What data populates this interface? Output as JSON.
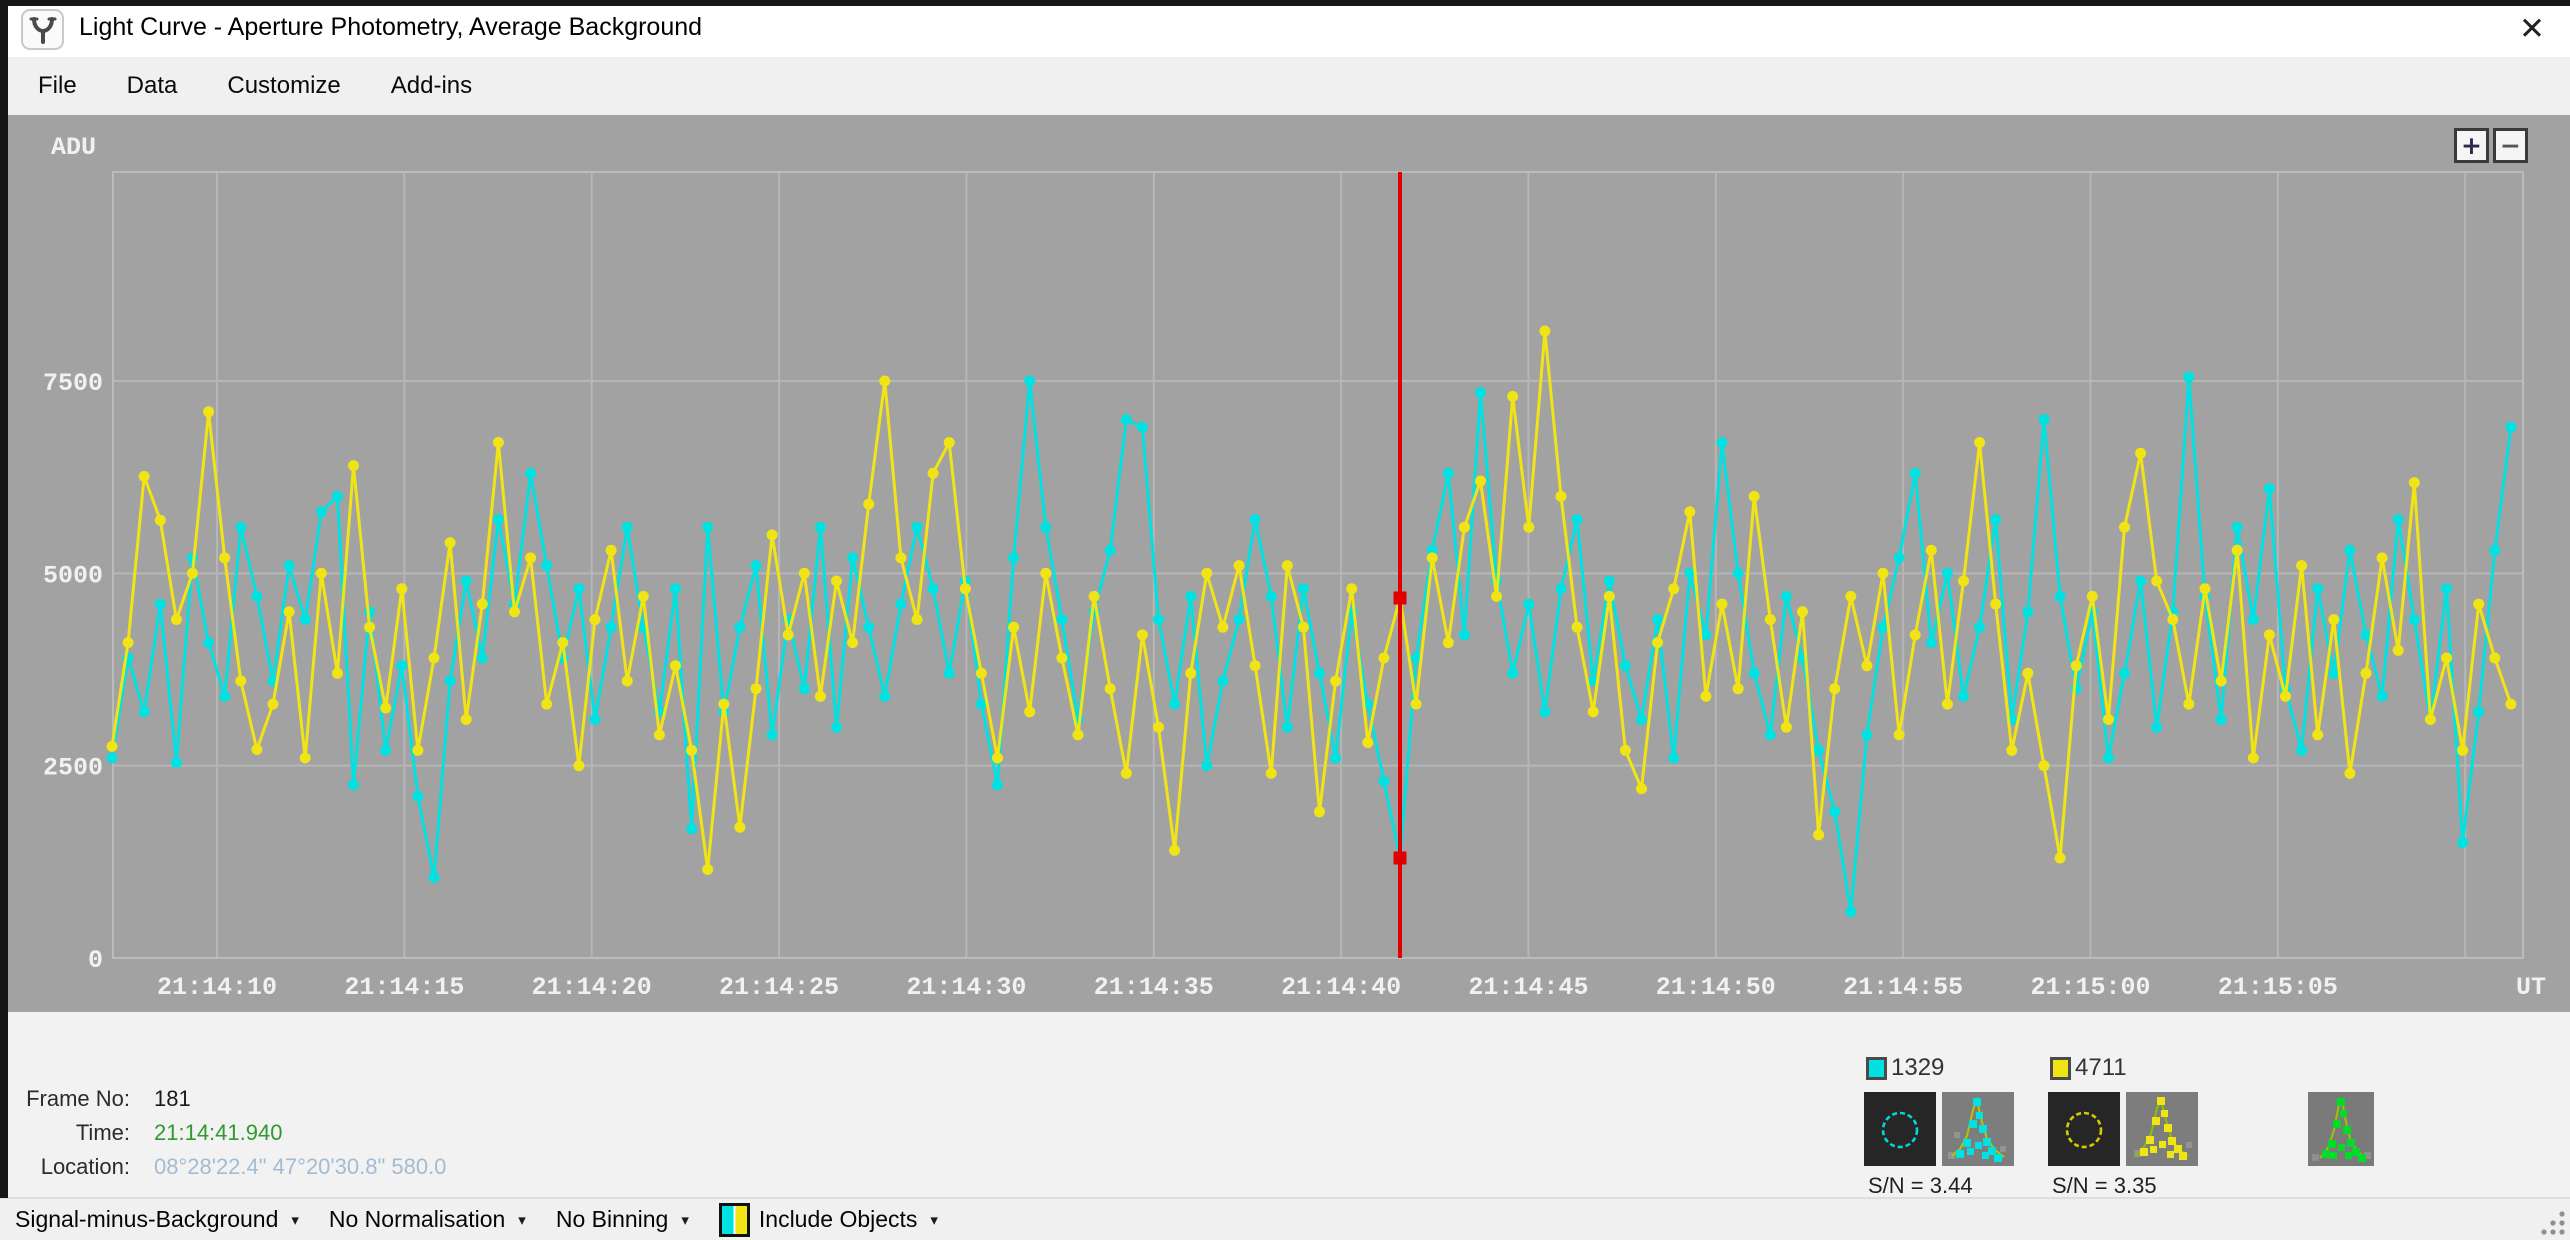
{
  "window": {
    "title": "Light Curve - Aperture Photometry, Average Background",
    "close_glyph": "✕"
  },
  "menu": {
    "items": [
      "File",
      "Data",
      "Customize",
      "Add-ins"
    ]
  },
  "chart_controls": {
    "zoom_in": "+",
    "zoom_out": "−"
  },
  "info": {
    "rows": [
      {
        "label": "Frame No:",
        "value": "181"
      },
      {
        "label": "Time:",
        "value": "21:14:41.940"
      },
      {
        "label": "Location:",
        "value": "08°28'22.4\" 47°20'30.8\" 580.0"
      }
    ]
  },
  "legend": {
    "targets": [
      {
        "id": "1329",
        "color": "#00e2e2",
        "sn_label": "S/N =  3.44"
      },
      {
        "id": "4711",
        "color": "#f0e415",
        "sn_label": "S/N =  3.35"
      }
    ]
  },
  "statusbar": {
    "arrow": "▾",
    "items": [
      {
        "label": "Signal-minus-Background"
      },
      {
        "label": "No Normalisation"
      },
      {
        "label": "No Binning"
      },
      {
        "label": "Include Objects",
        "icon": "objects-color-split-icon"
      }
    ]
  },
  "chart_data": {
    "type": "line",
    "title": "Light Curve - Aperture Photometry, Average Background",
    "ylabel": "ADU",
    "xlabel": "UT",
    "ylim": [
      0,
      10200
    ],
    "grid": true,
    "legend_position": "bottom-right",
    "y_ticks": [
      0,
      2500,
      5000,
      7500
    ],
    "x_tick_labels": [
      "21:14:10",
      "21:14:15",
      "21:14:20",
      "21:14:25",
      "21:14:30",
      "21:14:35",
      "21:14:40",
      "21:14:45",
      "21:14:50",
      "21:14:55",
      "21:15:00",
      "21:15:05"
    ],
    "cursor": {
      "index": 80,
      "frame": "181",
      "color": "#e00000"
    },
    "series": [
      {
        "name": "1329",
        "color": "#00e2e2",
        "values": [
          2600,
          3900,
          3200,
          4600,
          2540,
          5200,
          4100,
          3400,
          5600,
          4700,
          3600,
          5100,
          4400,
          5800,
          6000,
          2250,
          4500,
          2700,
          3800,
          2100,
          1050,
          3600,
          4900,
          3900,
          5700,
          4600,
          6300,
          5100,
          3900,
          4800,
          3100,
          4300,
          5600,
          4300,
          3200,
          4800,
          1680,
          5600,
          3200,
          4300,
          5100,
          2900,
          4400,
          3500,
          5600,
          3000,
          5200,
          4300,
          3400,
          4600,
          5600,
          4800,
          3700,
          4900,
          3300,
          2250,
          5200,
          7500,
          5600,
          4400,
          3100,
          4500,
          5300,
          7000,
          6900,
          4400,
          3300,
          4700,
          2500,
          3600,
          4400,
          5700,
          4700,
          3000,
          4800,
          3700,
          2600,
          4500,
          3300,
          2300,
          1300,
          3900,
          5300,
          6300,
          4200,
          7350,
          4900,
          3700,
          4600,
          3200,
          4800,
          5700,
          3600,
          4900,
          3800,
          3100,
          4400,
          2600,
          5000,
          4200,
          6700,
          5000,
          3700,
          2900,
          4700,
          3900,
          2700,
          1900,
          600,
          2900,
          4300,
          5200,
          6300,
          4100,
          5000,
          3400,
          4300,
          5700,
          3100,
          4500,
          7000,
          4700,
          3500,
          4500,
          2600,
          3700,
          4900,
          3000,
          4500,
          7550,
          4700,
          3100,
          5600,
          4400,
          6100,
          3500,
          2700,
          4800,
          3700,
          5300,
          4200,
          3400,
          5700,
          4400,
          3100,
          4800,
          1500,
          3200,
          5300,
          6900
        ]
      },
      {
        "name": "4711",
        "color": "#f0e415",
        "values": [
          2750,
          4100,
          6260,
          5690,
          4400,
          5000,
          7100,
          5200,
          3600,
          2710,
          3300,
          4500,
          2600,
          5000,
          3700,
          6400,
          4300,
          3250,
          4800,
          2700,
          3900,
          5400,
          3100,
          4600,
          6700,
          4500,
          5200,
          3300,
          4100,
          2500,
          4400,
          5300,
          3600,
          4700,
          2900,
          3800,
          2700,
          1150,
          3300,
          1700,
          3500,
          5500,
          4200,
          5000,
          3400,
          4900,
          4100,
          5900,
          7500,
          5200,
          4400,
          6300,
          6700,
          4800,
          3700,
          2600,
          4300,
          3200,
          5000,
          3900,
          2900,
          4700,
          3500,
          2400,
          4200,
          3000,
          1400,
          3700,
          5000,
          4300,
          5100,
          3800,
          2400,
          5100,
          4300,
          1900,
          3600,
          4800,
          2800,
          3900,
          4680,
          3300,
          5200,
          4100,
          5600,
          6200,
          4700,
          7300,
          5600,
          8150,
          6000,
          4300,
          3200,
          4700,
          2700,
          2200,
          4100,
          4800,
          5800,
          3400,
          4600,
          3500,
          6000,
          4400,
          3000,
          4500,
          1600,
          3500,
          4700,
          3800,
          5000,
          2900,
          4200,
          5300,
          3300,
          4900,
          6700,
          4600,
          2700,
          3700,
          2500,
          1300,
          3800,
          4700,
          3100,
          5600,
          6560,
          4900,
          4400,
          3300,
          4800,
          3600,
          5300,
          2600,
          4200,
          3400,
          5100,
          2900,
          4400,
          2400,
          3700,
          5200,
          4000,
          6180,
          3100,
          3900,
          2700,
          4600,
          3900,
          3300
        ]
      }
    ]
  }
}
